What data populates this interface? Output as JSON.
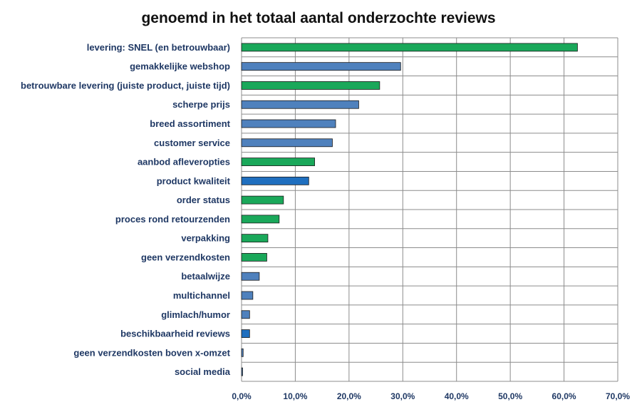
{
  "chart_data": {
    "type": "bar",
    "orientation": "horizontal",
    "title": "genoemd in het totaal aantal onderzochte reviews",
    "categories": [
      "levering: SNEL (en  betrouwbaar)",
      "gemakkelijke webshop",
      "betrouwbare levering (juiste product, juiste tijd)",
      "scherpe prijs",
      "breed assortiment",
      "customer service",
      "aanbod afleveropties",
      "product kwaliteit",
      "order status",
      "proces rond retourzenden",
      "verpakking",
      "geen verzendkosten",
      "betaalwijze",
      "multichannel",
      "glimlach/humor",
      "beschikbaarheid reviews",
      "geen verzendkosten boven x-omzet",
      "social media"
    ],
    "values": [
      62.5,
      29.6,
      25.7,
      21.8,
      17.5,
      16.9,
      13.6,
      12.5,
      7.8,
      7.0,
      4.9,
      4.7,
      3.3,
      2.1,
      1.5,
      1.5,
      0.3,
      0.2
    ],
    "bar_colors": [
      "#1aa85a",
      "#4f81bd",
      "#1aa85a",
      "#4f81bd",
      "#4f81bd",
      "#4f81bd",
      "#1aa85a",
      "#1f6fbf",
      "#1aa85a",
      "#1aa85a",
      "#1aa85a",
      "#1aa85a",
      "#4f81bd",
      "#4f81bd",
      "#4f81bd",
      "#1f6fbf",
      "#4f81bd",
      "#4f81bd"
    ],
    "xlim": [
      0,
      70
    ],
    "xticks": [
      0,
      10,
      20,
      30,
      40,
      50,
      60,
      70
    ],
    "xtick_labels": [
      "0,0%",
      "10,0%",
      "20,0%",
      "30,0%",
      "40,0%",
      "50,0%",
      "60,0%",
      "70,0%"
    ],
    "xlabel": "",
    "ylabel": "",
    "grid": true,
    "legend": "none"
  },
  "colors": {
    "gridline": "#8c8c8c",
    "bar_outline": "#1a1a1a",
    "label_text": "#1f3864"
  }
}
